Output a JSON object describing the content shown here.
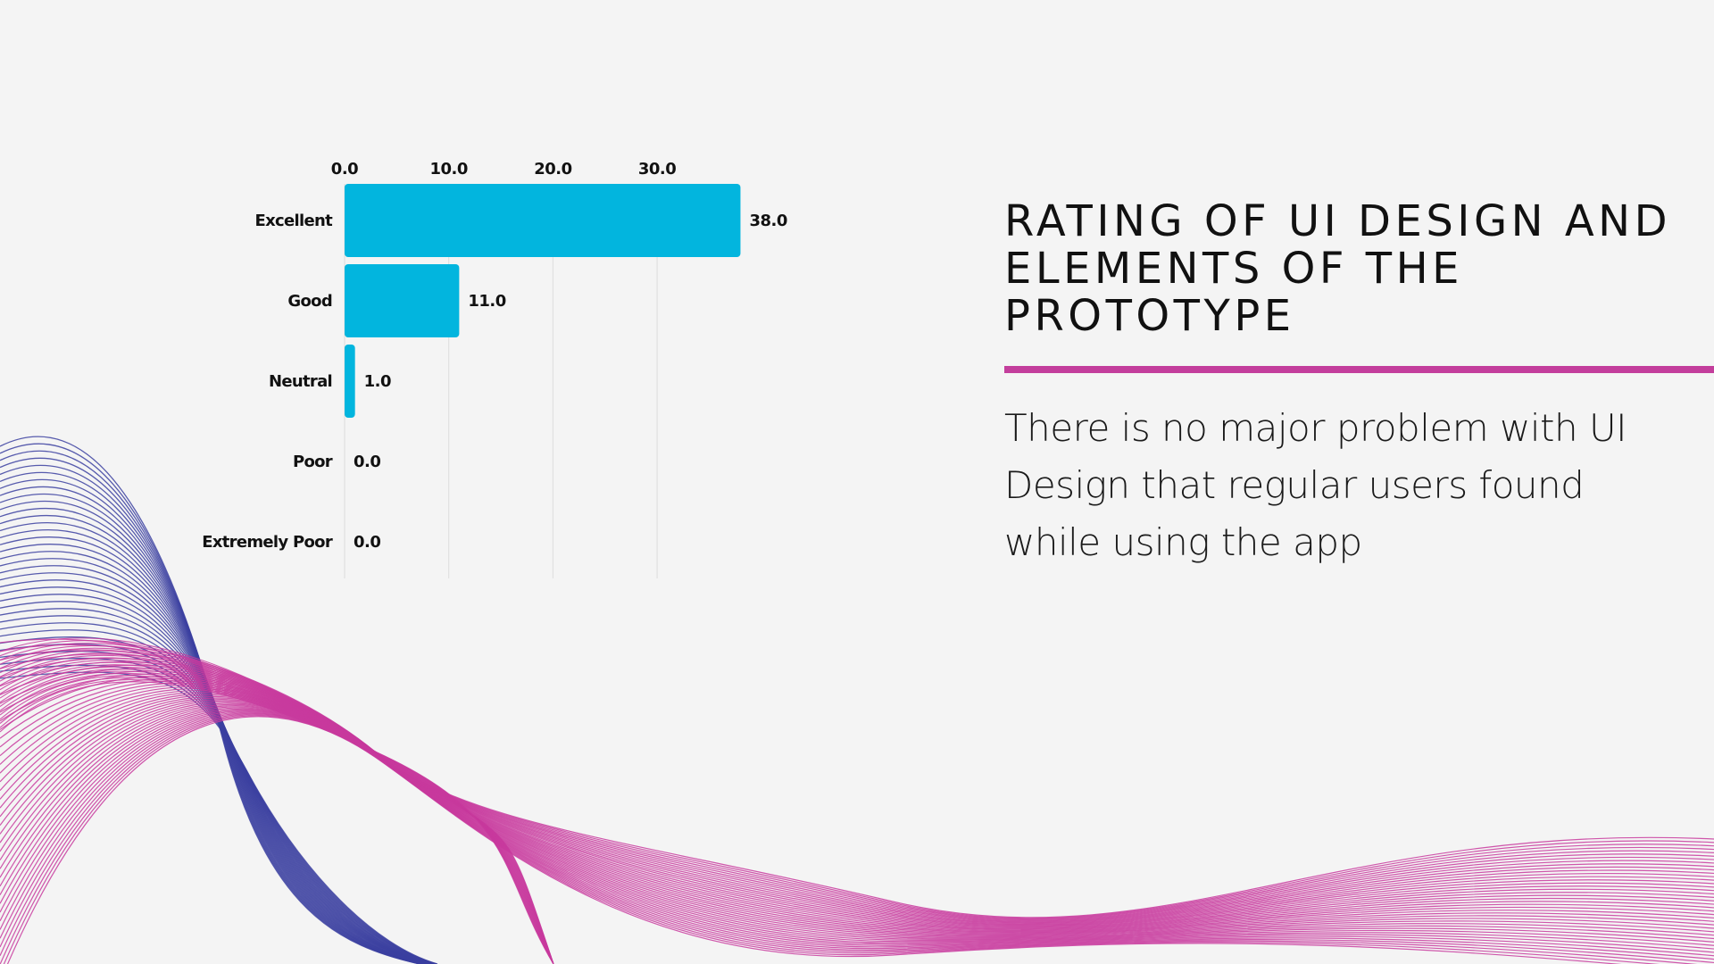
{
  "slide": {
    "title": "RATING OF UI DESIGN AND ELEMENTS OF THE PROTOTYPE",
    "description": "There is no major problem with UI Design that regular users found while using the app"
  },
  "colors": {
    "bar": "#02b5de",
    "accent_rule": "#c33e9c",
    "wave_blue": "#3b3fa0",
    "wave_pink": "#c83a9e",
    "grid": "#dddddd",
    "background": "#f4f4f4"
  },
  "chart_data": {
    "type": "bar",
    "orientation": "horizontal",
    "categories": [
      "Excellent",
      "Good",
      "Neutral",
      "Poor",
      "Extremely Poor"
    ],
    "values": [
      38.0,
      11.0,
      1.0,
      0.0,
      0.0
    ],
    "value_labels": [
      "38.0",
      "11.0",
      "1.0",
      "0.0",
      "0.0"
    ],
    "x_ticks": [
      0,
      10,
      20,
      30
    ],
    "x_tick_labels": [
      "0.0",
      "10.0",
      "20.0",
      "30.0"
    ],
    "xlim": [
      0,
      38
    ],
    "axis_position": "top",
    "grid": true,
    "legend": "none"
  }
}
